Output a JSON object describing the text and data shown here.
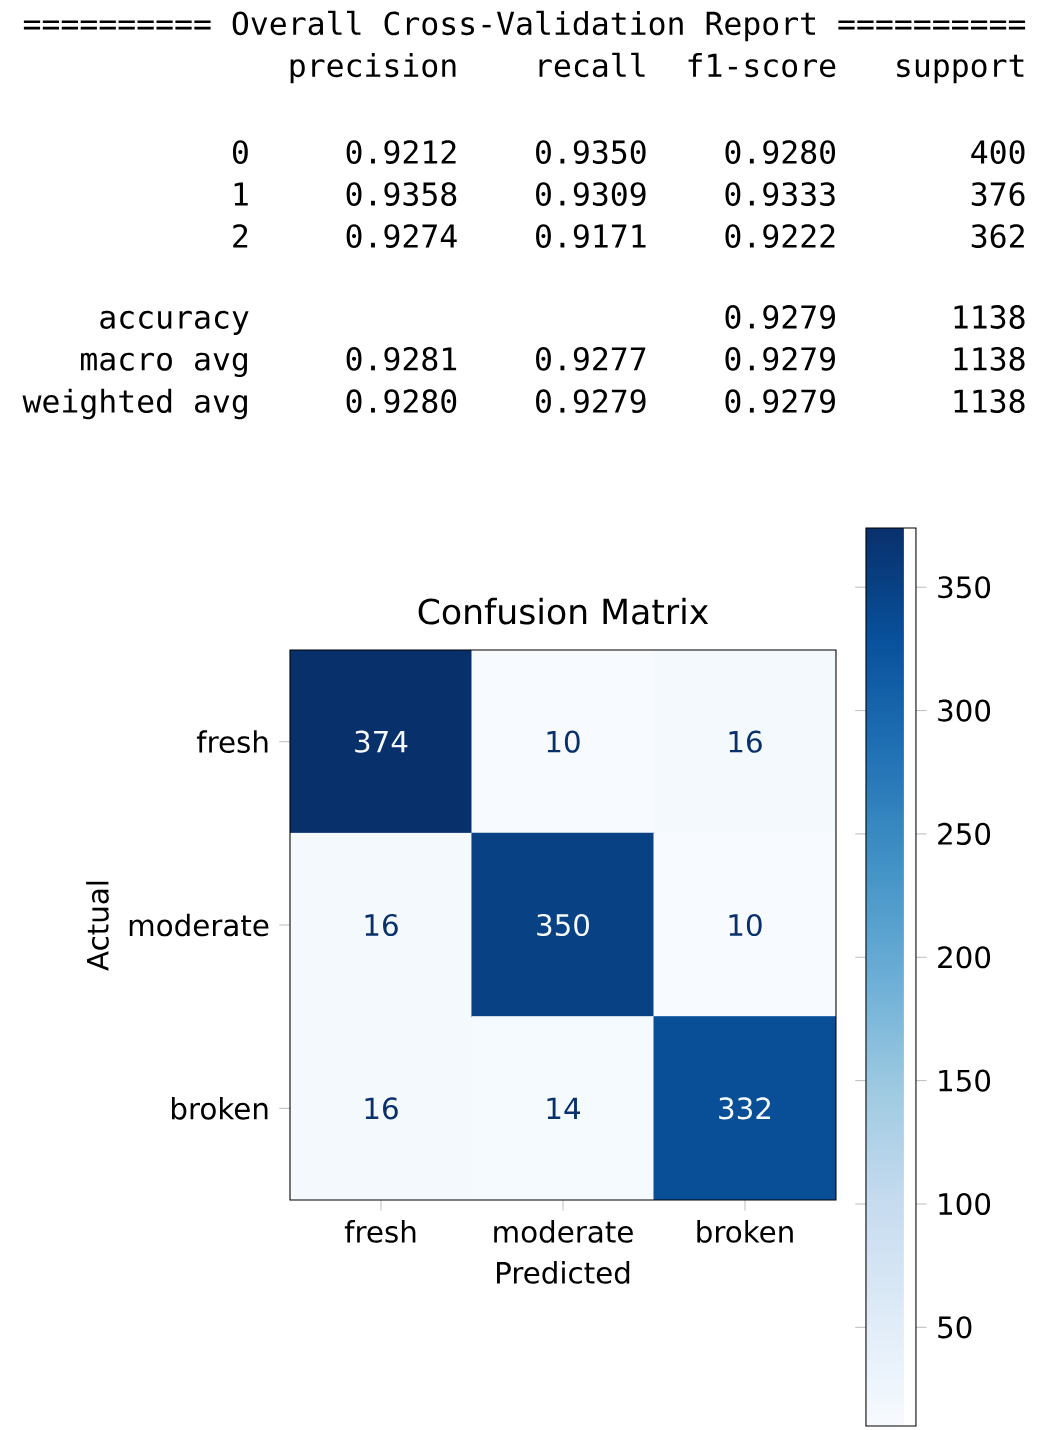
{
  "chart_data": {
    "type": "heatmap",
    "title": "Confusion Matrix",
    "xlabel": "Predicted",
    "ylabel": "Actual",
    "categories": [
      "fresh",
      "moderate",
      "broken"
    ],
    "y_categories": [
      "fresh",
      "moderate",
      "broken"
    ],
    "cells": [
      [
        374,
        10,
        16
      ],
      [
        16,
        350,
        10
      ],
      [
        16,
        14,
        332
      ]
    ],
    "data_labels": true,
    "clim": [
      10,
      374
    ],
    "cticks": [
      50,
      100,
      150,
      200,
      250,
      300,
      350
    ],
    "annotations": [
      "========== Overall Cross-Validation Report ==========",
      "              precision    recall  f1-score   support",
      "           0     0.9212    0.9350    0.9280       400",
      "           1     0.9358    0.9309    0.9333       376",
      "           2     0.9274    0.9171    0.9222       362",
      "    accuracy                         0.9279      1138",
      "   macro avg     0.9281    0.9277    0.9279      1138",
      "weighted avg     0.9280    0.9279    0.9279      1138"
    ]
  }
}
